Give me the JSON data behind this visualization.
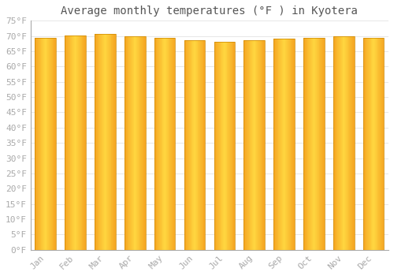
{
  "title": "Average monthly temperatures (°F ) in Kyotera",
  "months": [
    "Jan",
    "Feb",
    "Mar",
    "Apr",
    "May",
    "Jun",
    "Jul",
    "Aug",
    "Sep",
    "Oct",
    "Nov",
    "Dec"
  ],
  "values": [
    69.5,
    70.2,
    70.7,
    69.8,
    69.3,
    68.5,
    68.0,
    68.7,
    69.2,
    69.5,
    69.8,
    69.3
  ],
  "bar_color_center": "#FFD740",
  "bar_color_edge": "#F5A623",
  "ylim": [
    0,
    75
  ],
  "ytick_step": 5,
  "background_color": "#ffffff",
  "grid_color": "#dddddd",
  "title_fontsize": 10,
  "tick_fontsize": 8,
  "tick_color": "#aaaaaa",
  "spine_color": "#aaaaaa",
  "title_color": "#555555"
}
